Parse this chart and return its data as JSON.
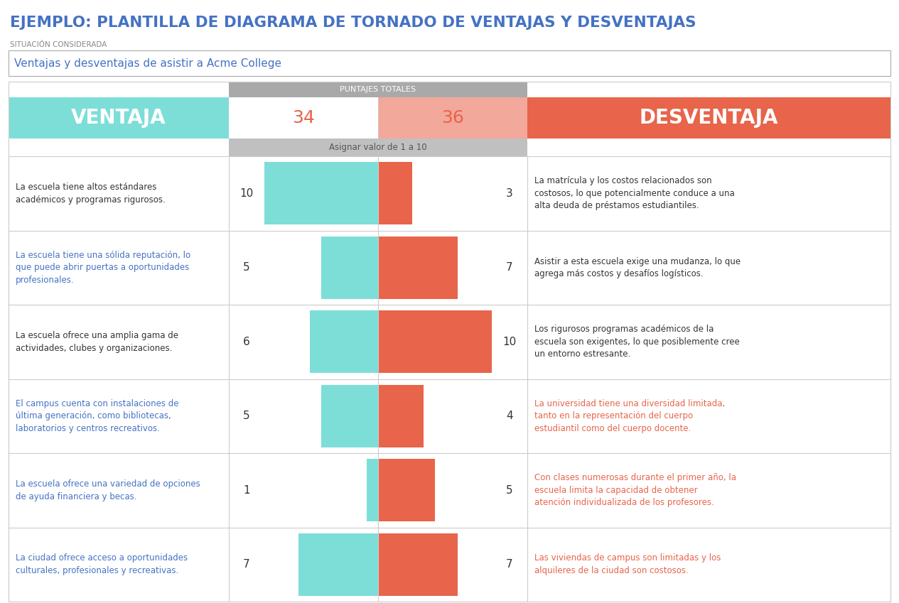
{
  "title": "EJEMPLO: PLANTILLA DE DIAGRAMA DE TORNADO DE VENTAJAS Y DESVENTAJAS",
  "title_color": "#4472C4",
  "situation_label": "SITUACIÓN CONSIDERADA",
  "situation_text": "Ventajas y desventajas de asistir a Acme College",
  "header_left": "VENTAJA",
  "header_right": "DESVENTAJA",
  "header_left_bg": "#7DDED8",
  "header_right_bg": "#E8644A",
  "score_label": "PUNTAJES TOTALES",
  "score_label_bg": "#A9A9A9",
  "assign_label": "Asignar valor de 1 a 10",
  "assign_label_bg": "#C0C0C0",
  "total_pro": 34,
  "total_con": 36,
  "total_pro_bg": "#FFFFFF",
  "total_con_bg": "#F2A89A",
  "bar_color_pro": "#7DDED8",
  "bar_color_con": "#E8644A",
  "grid_color": "#CCCCCC",
  "pros": [
    {
      "score": 10,
      "text": "La escuela tiene altos estándares\nacadémicos y programas rigurosos.",
      "color": "#333333"
    },
    {
      "score": 5,
      "text": "La escuela tiene una sólida reputación, lo\nque puede abrir puertas a oportunidades\nprofesionales.",
      "color": "#4472C4"
    },
    {
      "score": 6,
      "text": "La escuela ofrece una amplia gama de\nactividades, clubes y organizaciones.",
      "color": "#333333"
    },
    {
      "score": 5,
      "text": "El campus cuenta con instalaciones de\núltima generación, como bibliotecas,\nlaboratorios y centros recreativos.",
      "color": "#4472C4"
    },
    {
      "score": 1,
      "text": "La escuela ofrece una variedad de opciones\nde ayuda financiera y becas.",
      "color": "#4472C4"
    },
    {
      "score": 7,
      "text": "La ciudad ofrece acceso a oportunidades\nculturales, profesionales y recreativas.",
      "color": "#4472C4"
    }
  ],
  "cons": [
    {
      "score": 3,
      "text": "La matrícula y los costos relacionados son\ncostosos, lo que potencialmente conduce a una\nalta deuda de préstamos estudiantiles.",
      "color": "#333333"
    },
    {
      "score": 7,
      "text": "Asistir a esta escuela exige una mudanza, lo que\nagrega más costos y desafíos logísticos.",
      "color": "#333333"
    },
    {
      "score": 10,
      "text": "Los rigurosos programas académicos de la\nescuela son exigentes, lo que posiblemente cree\nun entorno estresante.",
      "color": "#333333"
    },
    {
      "score": 4,
      "text": "La universidad tiene una diversidad limitada,\ntanto en la representación del cuerpo\nestudiantil como del cuerpo docente.",
      "color": "#E8644A"
    },
    {
      "score": 5,
      "text": "Con clases numerosas durante el primer año, la\nescuela limita la capacidad de obtener\natención individualizada de los profesores.",
      "color": "#E8644A"
    },
    {
      "score": 7,
      "text": "Las viviendas de campus son limitadas y los\nalquileres de la ciudad son costosos.",
      "color": "#E8644A"
    }
  ]
}
